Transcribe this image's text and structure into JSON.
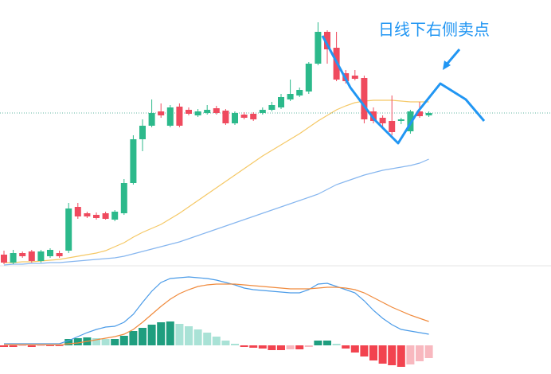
{
  "chart_data": [
    {
      "type": "candlestick",
      "annotation": "日线下右侧卖点",
      "open": [
        20,
        10,
        22,
        24,
        12,
        18,
        22,
        25,
        80,
        72,
        70,
        72,
        64,
        72,
        110,
        165,
        182,
        200,
        182,
        206,
        202,
        195,
        198,
        204,
        201,
        185,
        196,
        197,
        198,
        202,
        205,
        215,
        220,
        225,
        260,
        300,
        280,
        248,
        245,
        242,
        200,
        192,
        188,
        188,
        175,
        200,
        195
      ],
      "high": [
        25,
        26,
        24,
        26,
        26,
        28,
        25,
        85,
        85,
        74,
        73,
        74,
        76,
        115,
        170,
        190,
        215,
        210,
        208,
        210,
        205,
        203,
        208,
        207,
        203,
        200,
        199,
        199,
        205,
        212,
        222,
        240,
        230,
        262,
        312,
        302,
        300,
        252,
        252,
        245,
        205,
        195,
        220,
        192,
        202,
        212,
        200
      ],
      "low": [
        8,
        8,
        16,
        10,
        10,
        16,
        16,
        22,
        65,
        66,
        64,
        64,
        62,
        70,
        108,
        150,
        180,
        192,
        180,
        180,
        195,
        193,
        196,
        196,
        183,
        183,
        190,
        188,
        196,
        200,
        203,
        213,
        218,
        222,
        258,
        260,
        238,
        235,
        239,
        185,
        185,
        180,
        170,
        184,
        172,
        192,
        193
      ],
      "close": [
        10,
        22,
        18,
        12,
        24,
        26,
        18,
        78,
        68,
        68,
        66,
        65,
        74,
        110,
        165,
        182,
        198,
        195,
        205,
        182,
        197,
        200,
        202,
        198,
        185,
        198,
        192,
        190,
        202,
        208,
        218,
        222,
        227,
        260,
        300,
        278,
        240,
        238,
        241,
        190,
        188,
        185,
        174,
        190,
        200,
        194,
        198
      ],
      "up_color": "#2cb98b",
      "down_color": "#ef4a5e",
      "lines": [
        {
          "color": "#f5c865",
          "values": [
            10,
            10,
            11,
            11,
            12,
            13,
            14,
            16,
            18,
            20,
            22,
            25,
            30,
            35,
            42,
            48,
            53,
            58,
            65,
            72,
            80,
            88,
            96,
            104,
            112,
            120,
            128,
            136,
            144,
            151,
            158,
            165,
            172,
            180,
            188,
            195,
            202,
            207,
            211,
            213,
            214,
            214,
            214,
            213,
            212,
            212,
            212
          ]
        },
        {
          "color": "#86b6ef",
          "values": [
            7,
            8,
            8,
            9,
            9,
            10,
            10,
            11,
            12,
            13,
            14,
            15,
            16,
            18,
            21,
            24,
            27,
            30,
            33,
            36,
            40,
            44,
            48,
            52,
            56,
            60,
            64,
            68,
            72,
            76,
            80,
            84,
            88,
            92,
            96,
            102,
            108,
            112,
            116,
            120,
            123,
            126,
            128,
            130,
            132,
            135,
            140
          ]
        }
      ],
      "ylim": [
        0,
        340
      ]
    },
    {
      "type": "macd",
      "values": [
        -2,
        -2,
        -1,
        -2,
        -1,
        -1,
        -1,
        8,
        9,
        10,
        9,
        8,
        8,
        12,
        18,
        22,
        26,
        29,
        30,
        27,
        24,
        20,
        16,
        11,
        6,
        2,
        -2,
        -3,
        -4,
        -6,
        -6,
        -5,
        -5,
        -2,
        6,
        6,
        2,
        -4,
        -9,
        -14,
        -19,
        -23,
        -25,
        -27,
        -24,
        -20,
        -16
      ],
      "colors": {
        "up_rise": "#1f9e7f",
        "up_fall": "#a9e2d6",
        "down_fall": "#f2434f",
        "down_rise": "#f8b8bf"
      },
      "lines": [
        {
          "color": "#4a9be8",
          "values": [
            2,
            2,
            2,
            2,
            2,
            2,
            2,
            6,
            11,
            16,
            20,
            23,
            24,
            29,
            39,
            54,
            68,
            79,
            84,
            85,
            86,
            85,
            84,
            82,
            79,
            76,
            72,
            70,
            69,
            68,
            67,
            66,
            66,
            70,
            77,
            78,
            74,
            70,
            66,
            56,
            44,
            34,
            26,
            20,
            18,
            16,
            14
          ]
        },
        {
          "color": "#f08a3c",
          "values": [
            1,
            1,
            1,
            1,
            1,
            1,
            1,
            2,
            3,
            5,
            7,
            9,
            11,
            14,
            20,
            29,
            39,
            49,
            58,
            65,
            70,
            74,
            76,
            77,
            77,
            77,
            76,
            75,
            74,
            73,
            72,
            71,
            71,
            71,
            72,
            73,
            73,
            72,
            70,
            66,
            60,
            54,
            48,
            43,
            38,
            34,
            30
          ]
        }
      ],
      "ylim": [
        -36,
        96
      ]
    }
  ]
}
